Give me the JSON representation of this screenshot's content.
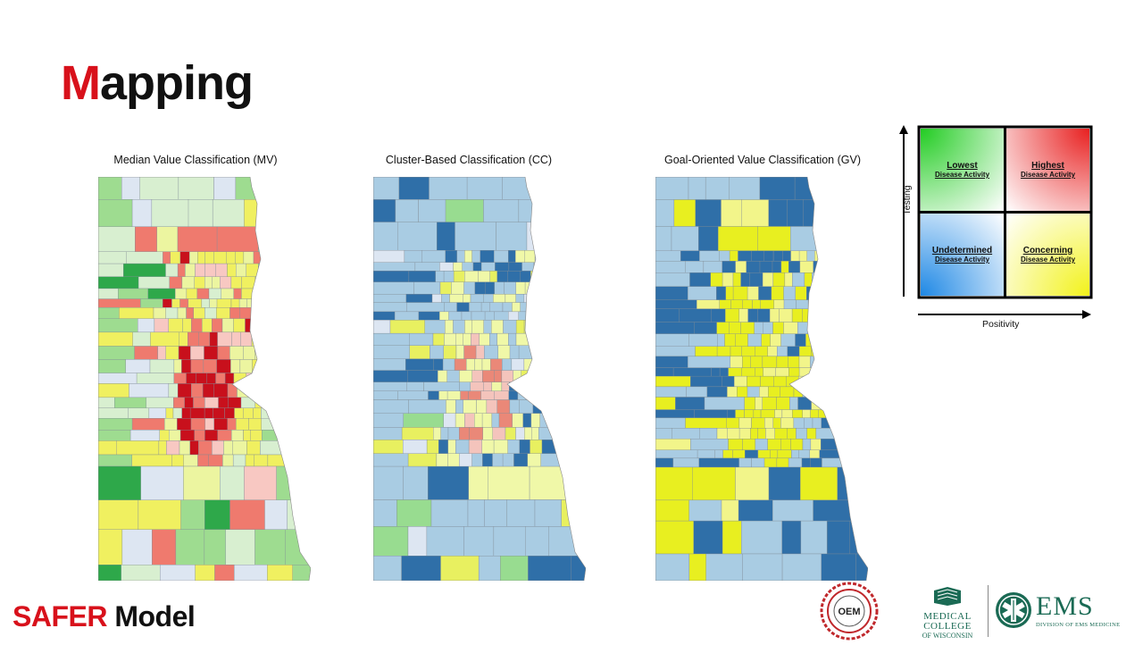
{
  "slide": {
    "title_first_letter": "M",
    "title_rest": "apping",
    "footer_red": "SAFER",
    "footer_rest": " Model"
  },
  "maps": [
    {
      "caption": "Median Value Classification (MV)"
    },
    {
      "caption": "Cluster-Based Classification (CC)"
    },
    {
      "caption": "Goal-Oriented Value Classification (GV)"
    }
  ],
  "legend": {
    "y_axis": "Testing",
    "x_axis": "Positivity",
    "quadrants": {
      "top_left": {
        "title": "Lowest",
        "subtitle": "Disease Activity",
        "color": "#22cc22"
      },
      "top_right": {
        "title": "Highest",
        "subtitle": "Disease Activity",
        "color": "#e82020"
      },
      "bottom_left": {
        "title": "Undetermined",
        "subtitle": "Disease Activity",
        "color": "#1e88e5"
      },
      "bottom_right": {
        "title": "Concerning",
        "subtitle": "Disease Activity",
        "color": "#f2f21a"
      }
    }
  },
  "logos": {
    "oem": "OEM",
    "mcw_line1": "MEDICAL",
    "mcw_line2": "COLLEGE",
    "mcw_line3": "OF WISCONSIN",
    "ems": "EMS",
    "ems_sub": "DIVISION OF EMS MEDICINE"
  },
  "palettes": {
    "mv": [
      "#c8101c",
      "#ef7a6e",
      "#f8c8c2",
      "#ecf5a0",
      "#f0f060",
      "#d8efd0",
      "#9edc90",
      "#2ea84a",
      "#dde6f2"
    ],
    "cc": [
      "#a9cce3",
      "#2f6fa8",
      "#f0f8a8",
      "#e8f060",
      "#f4c4bc",
      "#ea8878",
      "#98dc90",
      "#3aa84a",
      "#dde6f2"
    ],
    "gv": [
      "#a9cce3",
      "#2f6fa8",
      "#e8ef20",
      "#f2f58a",
      "#98dc90",
      "#3aa84a"
    ]
  }
}
